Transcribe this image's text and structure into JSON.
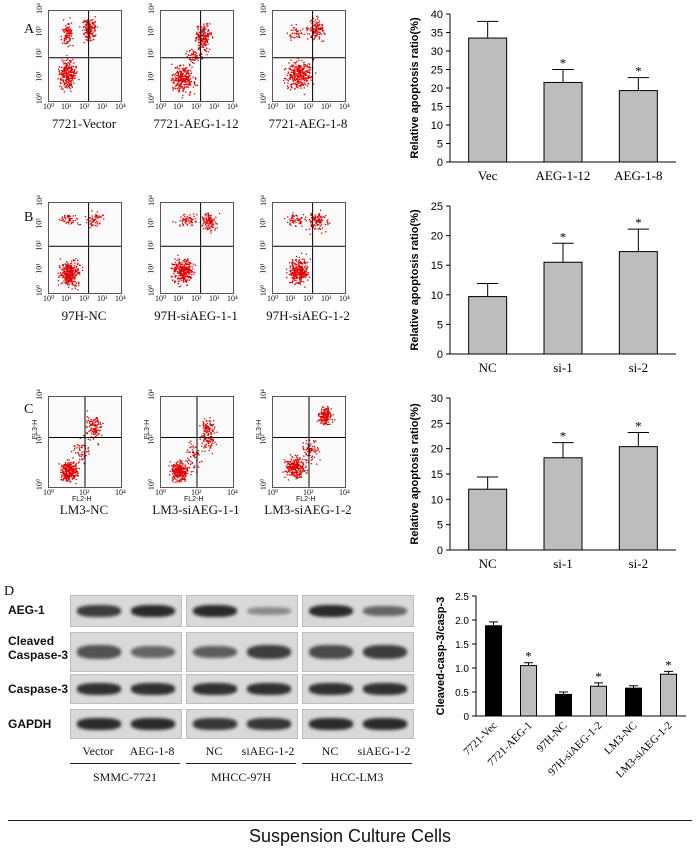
{
  "panels": {
    "A": "A",
    "B": "B",
    "C": "C",
    "D": "D"
  },
  "flow": {
    "tick_labels": [
      "10⁰",
      "10¹",
      "10²",
      "10³",
      "10⁴"
    ],
    "axis_fl2": "FL2-H",
    "axis_fl3": "FL3-H",
    "rows": [
      {
        "captions": [
          "7721-Vector",
          "7721-AEG-1-12",
          "7721-AEG-1-8"
        ]
      },
      {
        "captions": [
          "97H-NC",
          "97H-siAEG-1-1",
          "97H-siAEG-1-2"
        ]
      },
      {
        "captions": [
          "LM3-NC",
          "LM3-siAEG-1-1",
          "LM3-siAEG-1-2"
        ]
      }
    ]
  },
  "colors": {
    "bar_gray": "#bdbdbd",
    "bar_black": "#000000",
    "dots": "#e00000"
  },
  "chart_data": [
    {
      "type": "bar",
      "panel": "A",
      "categories": [
        "Vec",
        "AEG-1-12",
        "AEG-1-8"
      ],
      "values": [
        33.5,
        21.5,
        19.3
      ],
      "errors": [
        4.5,
        3.5,
        3.5
      ],
      "significance": [
        "",
        "*",
        "*"
      ],
      "ylabel": "Relative apoptosis ratio(%)",
      "ylim": [
        0,
        40
      ],
      "yticks": [
        0,
        5,
        10,
        15,
        20,
        25,
        30,
        35,
        40
      ]
    },
    {
      "type": "bar",
      "panel": "B",
      "categories": [
        "NC",
        "si-1",
        "si-2"
      ],
      "values": [
        9.7,
        15.5,
        17.3
      ],
      "errors": [
        2.2,
        3.2,
        3.8
      ],
      "significance": [
        "",
        "*",
        "*"
      ],
      "ylabel": "Relative apoptosis ratio(%)",
      "ylim": [
        0,
        25
      ],
      "yticks": [
        0,
        5,
        10,
        15,
        20,
        25
      ]
    },
    {
      "type": "bar",
      "panel": "C",
      "categories": [
        "NC",
        "si-1",
        "si-2"
      ],
      "values": [
        12,
        18.2,
        20.4
      ],
      "errors": [
        2.4,
        3,
        2.8
      ],
      "significance": [
        "",
        "*",
        "*"
      ],
      "ylabel": "Relative apoptosis ratio(%)",
      "ylim": [
        0,
        30
      ],
      "yticks": [
        0,
        5,
        10,
        15,
        20,
        25,
        30
      ]
    },
    {
      "type": "bar",
      "panel": "D",
      "categories": [
        "7721-Vec",
        "7721-AEG-1",
        "97H-NC",
        "97H-siAEG-1-2",
        "LM3-NC",
        "LM3-siAEG-1-2"
      ],
      "values": [
        1.88,
        1.05,
        0.45,
        0.62,
        0.58,
        0.87
      ],
      "errors": [
        0.08,
        0.06,
        0.05,
        0.07,
        0.05,
        0.06
      ],
      "bar_colors": [
        "black",
        "gray",
        "black",
        "gray",
        "black",
        "gray"
      ],
      "significance": [
        "",
        "*",
        "",
        "*",
        "",
        "*"
      ],
      "ylabel": "Cleaved-casp-3/casp-3",
      "ylim": [
        0,
        2.5
      ],
      "yticks": [
        "0",
        "0.5",
        "1.0",
        "1.5",
        "2.0",
        "2.5"
      ]
    }
  ],
  "western": {
    "rows": [
      "AEG-1",
      "Cleaved\nCaspase-3",
      "Caspase-3",
      "GAPDH"
    ],
    "groups": [
      {
        "name": "SMMC-7721",
        "lanes": [
          "Vector",
          "AEG-1-8"
        ]
      },
      {
        "name": "MHCC-97H",
        "lanes": [
          "NC",
          "siAEG-1-2"
        ]
      },
      {
        "name": "HCC-LM3",
        "lanes": [
          "NC",
          "siAEG-1-2"
        ]
      }
    ],
    "intensity": [
      [
        [
          0.85,
          1.0
        ],
        [
          1.0,
          0.25
        ],
        [
          1.0,
          0.55
        ]
      ],
      [
        [
          0.7,
          0.55
        ],
        [
          0.6,
          0.85
        ],
        [
          0.75,
          0.85
        ]
      ],
      [
        [
          0.95,
          0.95
        ],
        [
          0.95,
          0.95
        ],
        [
          0.95,
          0.95
        ]
      ],
      [
        [
          1.0,
          1.0
        ],
        [
          0.9,
          0.9
        ],
        [
          1.0,
          1.0
        ]
      ]
    ]
  },
  "footer": "Suspension Culture Cells"
}
